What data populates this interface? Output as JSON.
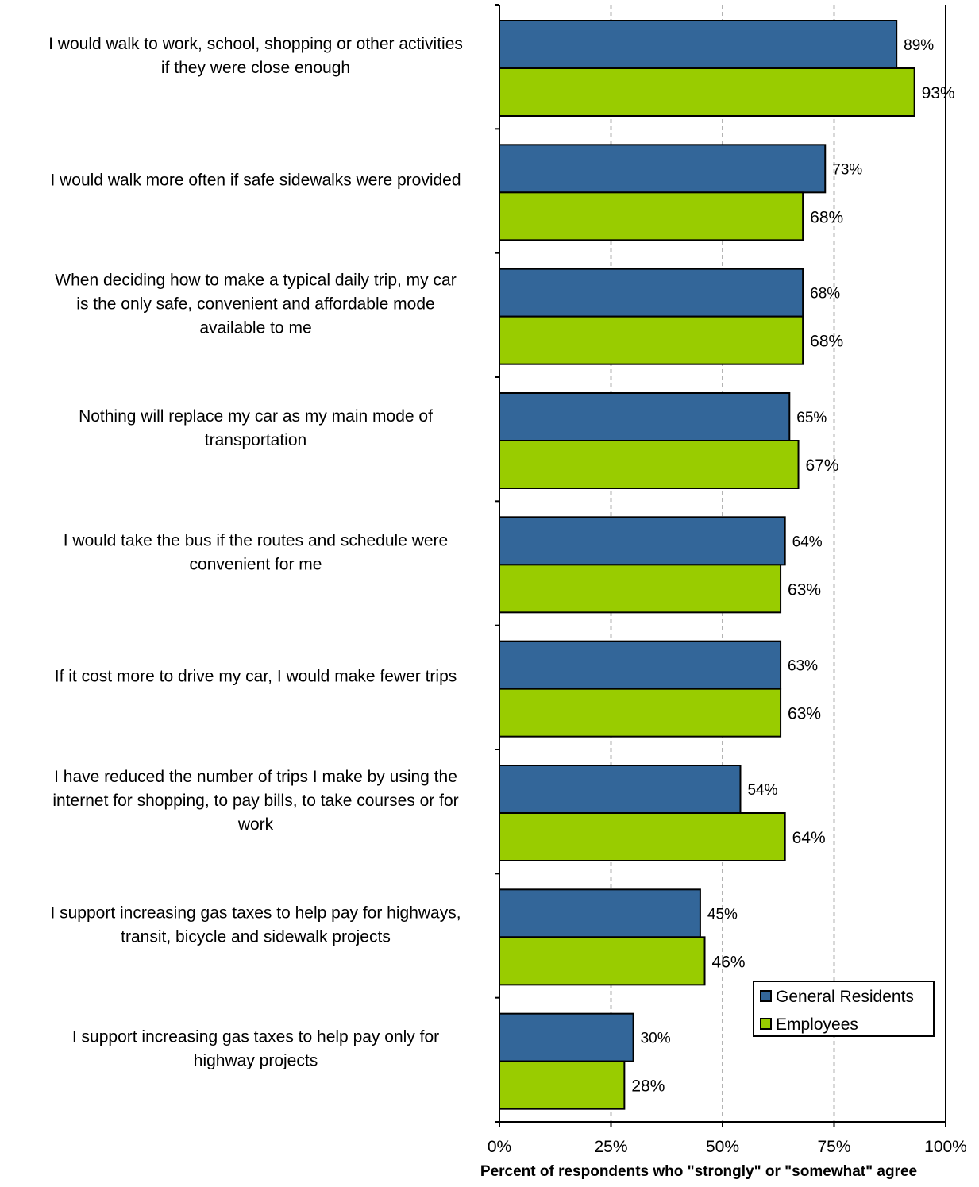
{
  "chart_data": {
    "type": "bar",
    "orientation": "horizontal",
    "categories": [
      [
        "I would walk to work, school, shopping or other activities",
        "if they were close enough"
      ],
      [
        "I would walk more often if safe sidewalks were provided"
      ],
      [
        "When deciding how to make a typical daily trip, my car",
        "is the only safe, convenient and affordable mode",
        "available to me"
      ],
      [
        "Nothing will replace my car as my main mode of",
        "transportation"
      ],
      [
        "I would take the bus if the routes and schedule were",
        "convenient for me"
      ],
      [
        "If it cost more to drive my car, I would make fewer trips"
      ],
      [
        "I have reduced the number of trips I make by using the",
        "internet for shopping, to pay bills, to take courses or for",
        "work"
      ],
      [
        "I support increasing gas taxes to help pay for highways,",
        "transit, bicycle and sidewalk projects"
      ],
      [
        "I support increasing gas taxes to help pay only for",
        "highway projects"
      ]
    ],
    "series": [
      {
        "name": "General Residents",
        "color": "#336699",
        "values": [
          89,
          73,
          68,
          65,
          64,
          63,
          54,
          45,
          30
        ],
        "labels": [
          "89%",
          "73%",
          "68%",
          "65%",
          "64%",
          "63%",
          "54%",
          "45%",
          "30%"
        ]
      },
      {
        "name": "Employees",
        "color": "#99CC00",
        "values": [
          93,
          68,
          68,
          67,
          63,
          63,
          64,
          46,
          28
        ],
        "labels": [
          "93%",
          "68%",
          "68%",
          "67%",
          "63%",
          "63%",
          "64%",
          "46%",
          "28%"
        ]
      }
    ],
    "xlim": [
      0,
      100
    ],
    "xticks": [
      0,
      25,
      50,
      75,
      100
    ],
    "xtick_labels": [
      "0%",
      "25%",
      "50%",
      "75%",
      "100%"
    ],
    "xlabel": "Percent of respondents who \"strongly\" or \"somewhat\" agree",
    "ylabel": "",
    "title": "",
    "grid": "vertical dashed",
    "legend_position": "bottom-right inside plot"
  }
}
